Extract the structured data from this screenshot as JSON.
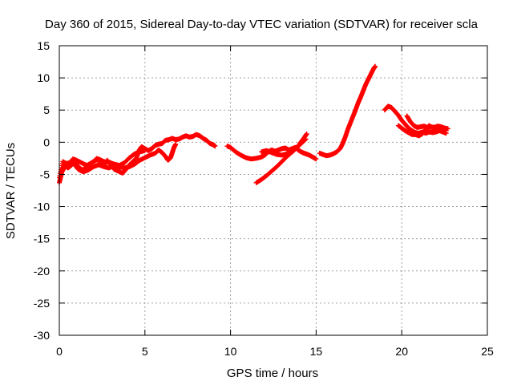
{
  "chart_data": {
    "type": "scatter",
    "title": "Day 360 of 2015, Sidereal Day-to-day VTEC variation (SDTVAR) for receiver scla",
    "xlabel": "GPS time / hours",
    "ylabel": "SDTVAR / TECUs",
    "xlim": [
      0,
      25
    ],
    "ylim": [
      -30,
      15
    ],
    "xticks": [
      0,
      5,
      10,
      15,
      20,
      25
    ],
    "yticks": [
      15,
      10,
      5,
      0,
      -5,
      -10,
      -15,
      -20,
      -25,
      -30
    ],
    "grid": true,
    "marker": "+",
    "color": "#ff0000",
    "series": [
      {
        "name": "SDTVAR",
        "segments": [
          [
            [
              0.0,
              -6.3
            ],
            [
              0.1,
              -5.2
            ],
            [
              0.2,
              -4.0
            ],
            [
              0.35,
              -3.5
            ],
            [
              0.5,
              -4.0
            ],
            [
              0.7,
              -3.6
            ],
            [
              0.9,
              -3.0
            ],
            [
              1.1,
              -3.8
            ],
            [
              1.35,
              -4.3
            ],
            [
              1.6,
              -3.9
            ],
            [
              1.8,
              -3.4
            ],
            [
              2.0,
              -3.0
            ],
            [
              2.2,
              -2.5
            ],
            [
              2.4,
              -3.2
            ],
            [
              2.6,
              -3.6
            ],
            [
              2.8,
              -2.8
            ],
            [
              3.0,
              -3.5
            ],
            [
              3.2,
              -4.2
            ],
            [
              3.45,
              -4.5
            ],
            [
              3.7,
              -4.8
            ],
            [
              3.9,
              -4.2
            ],
            [
              4.1,
              -3.5
            ],
            [
              4.3,
              -3.0
            ],
            [
              4.5,
              -2.5
            ],
            [
              4.65,
              -1.3
            ],
            [
              4.8,
              -0.7
            ],
            [
              5.0,
              -1.0
            ],
            [
              5.2,
              -1.3
            ],
            [
              5.4,
              -1.0
            ],
            [
              5.6,
              -0.5
            ],
            [
              5.8,
              -0.3
            ],
            [
              6.0,
              -0.2
            ],
            [
              6.2,
              0.3
            ],
            [
              6.4,
              0.4
            ],
            [
              6.6,
              0.6
            ],
            [
              6.8,
              0.4
            ],
            [
              7.0,
              0.5
            ],
            [
              7.2,
              0.8
            ],
            [
              7.4,
              1.0
            ],
            [
              7.6,
              0.8
            ],
            [
              7.8,
              0.9
            ],
            [
              8.0,
              1.2
            ],
            [
              8.2,
              1.0
            ],
            [
              8.4,
              0.6
            ],
            [
              8.6,
              0.3
            ],
            [
              8.8,
              -0.2
            ],
            [
              9.0,
              -0.4
            ],
            [
              9.1,
              -0.6
            ]
          ],
          [
            [
              0.1,
              -4.8
            ],
            [
              0.3,
              -4.0
            ],
            [
              0.5,
              -3.5
            ],
            [
              0.7,
              -3.0
            ],
            [
              0.9,
              -3.5
            ],
            [
              1.1,
              -4.2
            ],
            [
              1.4,
              -4.6
            ],
            [
              1.7,
              -4.3
            ],
            [
              2.0,
              -3.8
            ],
            [
              2.3,
              -3.5
            ],
            [
              2.6,
              -3.8
            ],
            [
              2.9,
              -4.0
            ],
            [
              3.2,
              -3.6
            ],
            [
              3.5,
              -3.8
            ],
            [
              3.8,
              -4.0
            ],
            [
              4.1,
              -3.8
            ],
            [
              4.4,
              -3.4
            ],
            [
              4.7,
              -2.8
            ],
            [
              5.0,
              -2.4
            ],
            [
              5.3,
              -2.0
            ],
            [
              5.6,
              -1.7
            ],
            [
              5.8,
              -1.2
            ],
            [
              6.0,
              -1.6
            ],
            [
              6.2,
              -2.2
            ],
            [
              6.35,
              -2.8
            ],
            [
              6.5,
              -2.4
            ],
            [
              6.6,
              -1.6
            ],
            [
              6.7,
              -0.8
            ],
            [
              6.8,
              -0.3
            ]
          ],
          [
            [
              0.0,
              -5.5
            ],
            [
              0.2,
              -3.0
            ],
            [
              0.4,
              -3.3
            ],
            [
              0.6,
              -3.2
            ],
            [
              0.8,
              -2.6
            ],
            [
              1.0,
              -2.8
            ],
            [
              1.3,
              -3.2
            ],
            [
              1.6,
              -3.6
            ],
            [
              2.0,
              -3.0
            ],
            [
              2.3,
              -2.6
            ],
            [
              2.6,
              -3.0
            ],
            [
              2.9,
              -3.1
            ],
            [
              3.2,
              -3.4
            ],
            [
              3.5,
              -3.6
            ],
            [
              3.8,
              -3.2
            ],
            [
              4.1,
              -2.4
            ],
            [
              4.4,
              -1.8
            ],
            [
              4.7,
              -1.5
            ],
            [
              5.0,
              -1.3
            ]
          ],
          [
            [
              9.8,
              -0.6
            ],
            [
              10.0,
              -0.8
            ],
            [
              10.3,
              -1.5
            ],
            [
              10.6,
              -2.0
            ],
            [
              10.9,
              -2.4
            ],
            [
              11.2,
              -2.6
            ],
            [
              11.5,
              -2.5
            ],
            [
              11.8,
              -2.3
            ],
            [
              12.0,
              -2.0
            ],
            [
              12.2,
              -1.5
            ],
            [
              12.4,
              -1.2
            ],
            [
              12.6,
              -1.4
            ],
            [
              12.8,
              -1.2
            ],
            [
              13.0,
              -1.0
            ],
            [
              13.2,
              -0.9
            ],
            [
              13.4,
              -1.2
            ],
            [
              13.6,
              -1.0
            ],
            [
              13.8,
              -0.8
            ],
            [
              14.0,
              -1.3
            ],
            [
              14.2,
              -1.6
            ],
            [
              14.4,
              -1.8
            ],
            [
              14.6,
              -2.0
            ],
            [
              14.8,
              -2.3
            ],
            [
              15.0,
              -2.6
            ]
          ],
          [
            [
              11.5,
              -6.3
            ],
            [
              11.8,
              -5.8
            ],
            [
              12.1,
              -5.2
            ],
            [
              12.4,
              -4.5
            ],
            [
              12.7,
              -3.8
            ],
            [
              13.0,
              -3.0
            ],
            [
              13.3,
              -2.2
            ],
            [
              13.6,
              -1.5
            ],
            [
              13.9,
              -0.8
            ],
            [
              14.1,
              0.0
            ],
            [
              14.3,
              0.7
            ],
            [
              14.45,
              1.3
            ]
          ],
          [
            [
              11.8,
              -1.5
            ],
            [
              12.1,
              -1.3
            ],
            [
              12.4,
              -1.6
            ],
            [
              12.7,
              -1.9
            ],
            [
              13.0,
              -2.0
            ],
            [
              13.3,
              -1.8
            ],
            [
              13.6,
              -1.5
            ],
            [
              13.8,
              -1.0
            ],
            [
              14.0,
              -0.5
            ],
            [
              14.2,
              0.0
            ],
            [
              14.4,
              0.5
            ]
          ],
          [
            [
              15.2,
              -1.7
            ],
            [
              15.4,
              -1.9
            ],
            [
              15.6,
              -2.1
            ],
            [
              15.8,
              -2.0
            ],
            [
              16.0,
              -1.8
            ],
            [
              16.2,
              -1.5
            ],
            [
              16.4,
              -1.0
            ],
            [
              16.55,
              -0.2
            ],
            [
              16.7,
              0.8
            ],
            [
              16.85,
              2.0
            ],
            [
              17.0,
              3.0
            ],
            [
              17.15,
              4.0
            ],
            [
              17.3,
              5.0
            ],
            [
              17.45,
              6.1
            ],
            [
              17.6,
              7.0
            ],
            [
              17.75,
              8.0
            ],
            [
              17.9,
              9.0
            ],
            [
              18.05,
              9.8
            ],
            [
              18.2,
              10.6
            ],
            [
              18.35,
              11.4
            ],
            [
              18.45,
              11.8
            ]
          ],
          [
            [
              19.0,
              5.0
            ],
            [
              19.2,
              5.6
            ],
            [
              19.4,
              5.4
            ],
            [
              19.6,
              4.8
            ],
            [
              19.8,
              4.2
            ],
            [
              20.0,
              3.4
            ],
            [
              20.2,
              2.8
            ],
            [
              20.4,
              2.2
            ],
            [
              20.6,
              1.8
            ],
            [
              20.8,
              1.5
            ],
            [
              21.0,
              1.4
            ],
            [
              21.2,
              1.6
            ],
            [
              21.4,
              1.4
            ],
            [
              21.6,
              1.6
            ],
            [
              21.8,
              1.5
            ],
            [
              22.0,
              1.6
            ],
            [
              22.2,
              1.8
            ],
            [
              22.4,
              1.6
            ],
            [
              22.6,
              1.4
            ]
          ],
          [
            [
              20.3,
              4.1
            ],
            [
              20.5,
              3.2
            ],
            [
              20.7,
              2.6
            ],
            [
              20.9,
              2.3
            ],
            [
              21.1,
              2.4
            ],
            [
              21.3,
              2.5
            ],
            [
              21.5,
              2.3
            ],
            [
              21.7,
              2.4
            ],
            [
              21.9,
              2.3
            ],
            [
              22.1,
              2.5
            ],
            [
              22.3,
              2.4
            ],
            [
              22.5,
              2.2
            ],
            [
              22.7,
              2.1
            ]
          ],
          [
            [
              19.8,
              2.6
            ],
            [
              20.0,
              2.2
            ],
            [
              20.2,
              1.8
            ],
            [
              20.4,
              1.5
            ],
            [
              20.6,
              1.2
            ],
            [
              20.8,
              1.2
            ],
            [
              21.0,
              1.0
            ],
            [
              21.2,
              1.3
            ],
            [
              21.4,
              2.0
            ],
            [
              21.6,
              2.6
            ],
            [
              21.8,
              2.2
            ],
            [
              22.0,
              1.9
            ],
            [
              22.2,
              2.2
            ],
            [
              22.4,
              2.0
            ],
            [
              22.6,
              1.8
            ]
          ]
        ]
      }
    ]
  }
}
